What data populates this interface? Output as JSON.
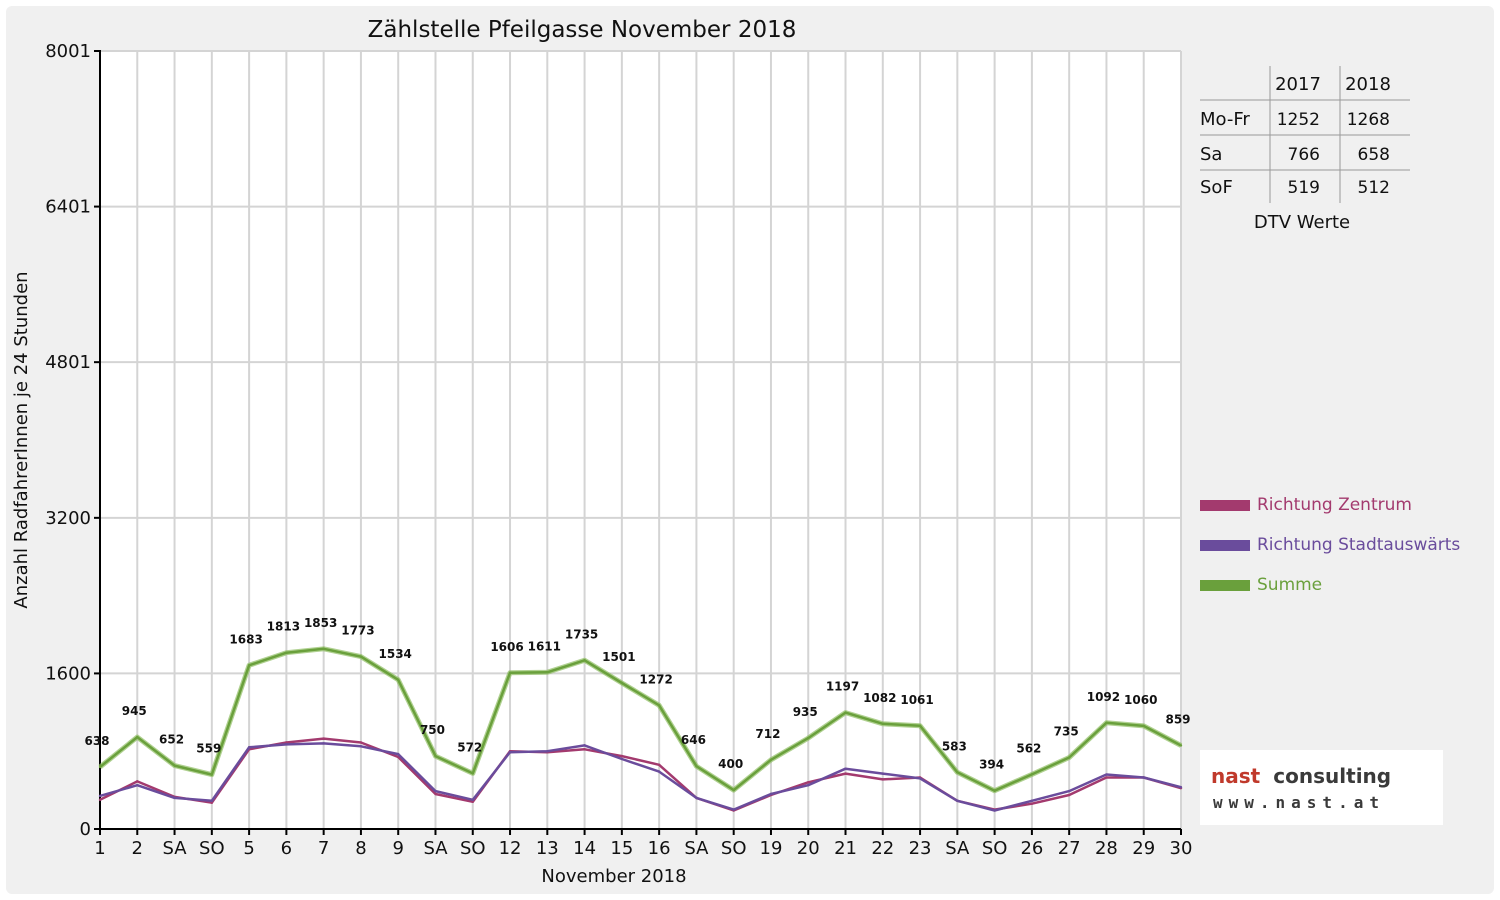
{
  "chart_data": {
    "type": "line",
    "title": "Zählstelle Pfeilgasse November 2018",
    "xlabel": "November 2018",
    "ylabel": "Anzahl RadfahrerInnen je 24 Stunden",
    "ylim": [
      0,
      8001
    ],
    "yticks": [
      "0",
      "1600",
      "3200",
      "4801",
      "6401",
      "8001"
    ],
    "grid": true,
    "legend_position": "right",
    "categories": [
      "1",
      "2",
      "SA",
      "SO",
      "5",
      "6",
      "7",
      "8",
      "9",
      "SA",
      "SO",
      "12",
      "13",
      "14",
      "15",
      "16",
      "SA",
      "SO",
      "19",
      "20",
      "21",
      "22",
      "23",
      "SA",
      "SO",
      "26",
      "27",
      "28",
      "29",
      "30"
    ],
    "category_colors": [
      "#e00000",
      "#111111",
      "#111111",
      "#e00000",
      "#111111",
      "#111111",
      "#111111",
      "#111111",
      "#111111",
      "#111111",
      "#e00000",
      "#111111",
      "#111111",
      "#111111",
      "#111111",
      "#111111",
      "#111111",
      "#e00000",
      "#111111",
      "#111111",
      "#111111",
      "#111111",
      "#111111",
      "#111111",
      "#e00000",
      "#111111",
      "#111111",
      "#111111",
      "#111111",
      "#111111"
    ],
    "series": [
      {
        "name": "Richtung Zentrum",
        "color": "#a33a6e",
        "values": [
          300,
          490,
          330,
          270,
          820,
          890,
          930,
          890,
          740,
          360,
          280,
          800,
          790,
          820,
          750,
          660,
          320,
          190,
          350,
          480,
          570,
          510,
          530,
          290,
          200,
          260,
          350,
          530,
          530,
          420
        ]
      },
      {
        "name": "Richtung Stadtauswärts",
        "color": "#6a4c9c",
        "values": [
          340,
          450,
          320,
          290,
          840,
          870,
          880,
          850,
          770,
          390,
          300,
          790,
          800,
          860,
          720,
          590,
          320,
          200,
          360,
          450,
          620,
          570,
          520,
          290,
          190,
          290,
          390,
          560,
          530,
          430
        ]
      },
      {
        "name": "Summe",
        "color": "#6aa03c",
        "values": [
          638,
          945,
          652,
          559,
          1683,
          1813,
          1853,
          1773,
          1534,
          750,
          572,
          1606,
          1611,
          1735,
          1501,
          1272,
          646,
          400,
          712,
          935,
          1197,
          1082,
          1061,
          583,
          394,
          562,
          735,
          1092,
          1060,
          859
        ],
        "labels": [
          "638",
          "945",
          "652",
          "559",
          "1683",
          "1813",
          "1853",
          "1773",
          "1534",
          "750",
          "572",
          "1606",
          "1611",
          "1735",
          "1501",
          "1272",
          "646",
          "400",
          "712",
          "935",
          "1197",
          "1082",
          "1061",
          "583",
          "394",
          "562",
          "735",
          "1092",
          "1060",
          "859"
        ]
      }
    ]
  },
  "dtv_table": {
    "headers": [
      "2017",
      "2018"
    ],
    "rows": [
      {
        "label": "Mo-Fr",
        "v2017": "1252",
        "v2018": "1268"
      },
      {
        "label": "Sa",
        "v2017": "766",
        "v2018": "658"
      },
      {
        "label": "SoF",
        "v2017": "519",
        "v2018": "512"
      }
    ],
    "caption": "DTV Werte"
  },
  "logo": {
    "brand_part1": "nast",
    "brand_part2": "consulting",
    "url": "www.nast.at"
  }
}
